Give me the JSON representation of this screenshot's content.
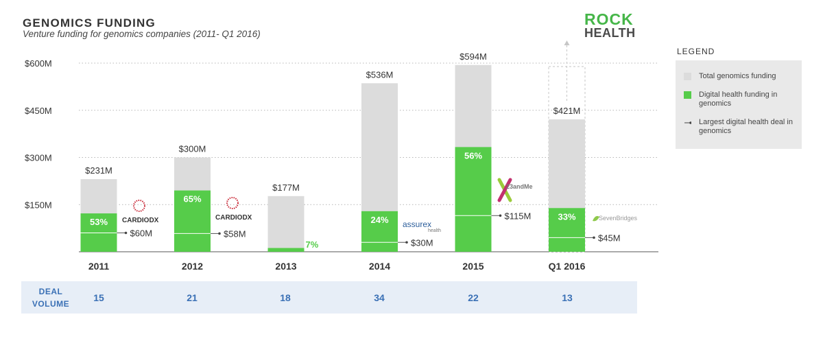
{
  "header": {
    "title": "GENOMICS FUNDING",
    "subtitle": "Venture funding for genomics companies (2011- Q1 2016)",
    "logo_line1": "ROCK",
    "logo_line2": "HEALTH"
  },
  "legend": {
    "title": "LEGEND",
    "items": [
      {
        "label": "Total genomics funding",
        "color": "#dcdcdc"
      },
      {
        "label": "Digital health funding in genomics",
        "color": "#56cc4a"
      },
      {
        "label": "Largest digital health deal in genomics",
        "color": "#444444"
      }
    ]
  },
  "deal_volume": {
    "label_line1": "DEAL",
    "label_line2": "VOLUME",
    "values": [
      "15",
      "21",
      "18",
      "34",
      "22",
      "13"
    ]
  },
  "brands": [
    "CARDIODX",
    "CARDIODX",
    "",
    "assurex",
    "23andMe",
    "SevenBridges"
  ],
  "brand_sub": {
    "assurex": "health"
  },
  "colors": {
    "total": "#dcdcdc",
    "digital": "#56cc4a",
    "grid": "#b5b5b5",
    "accent": "#3a70b5"
  },
  "chart_data": {
    "type": "bar",
    "categories": [
      "2011",
      "2012",
      "2013",
      "2014",
      "2015",
      "Q1 2016"
    ],
    "series": [
      {
        "name": "Total genomics funding",
        "values": [
          231,
          300,
          177,
          536,
          594,
          421
        ]
      },
      {
        "name": "Digital health funding in genomics",
        "values": [
          122,
          195,
          12,
          129,
          333,
          139
        ]
      },
      {
        "name": "Largest digital health deal in genomics",
        "values": [
          60,
          58,
          0,
          30,
          115,
          45
        ]
      }
    ],
    "total_labels": [
      "$231M",
      "$300M",
      "$177M",
      "$536M",
      "$594M",
      "$421M"
    ],
    "percent_labels": [
      "53%",
      "65%",
      "7%",
      "24%",
      "56%",
      "33%"
    ],
    "deal_labels": [
      "$60M",
      "$58M",
      "",
      "$30M",
      "$115M",
      "$45M"
    ],
    "y_ticks": [
      150,
      300,
      450,
      600
    ],
    "y_tick_labels": [
      "$150M",
      "$300M",
      "$450M",
      "$600M"
    ],
    "ylim": [
      0,
      600
    ],
    "grid": true,
    "legend_position": "right"
  }
}
